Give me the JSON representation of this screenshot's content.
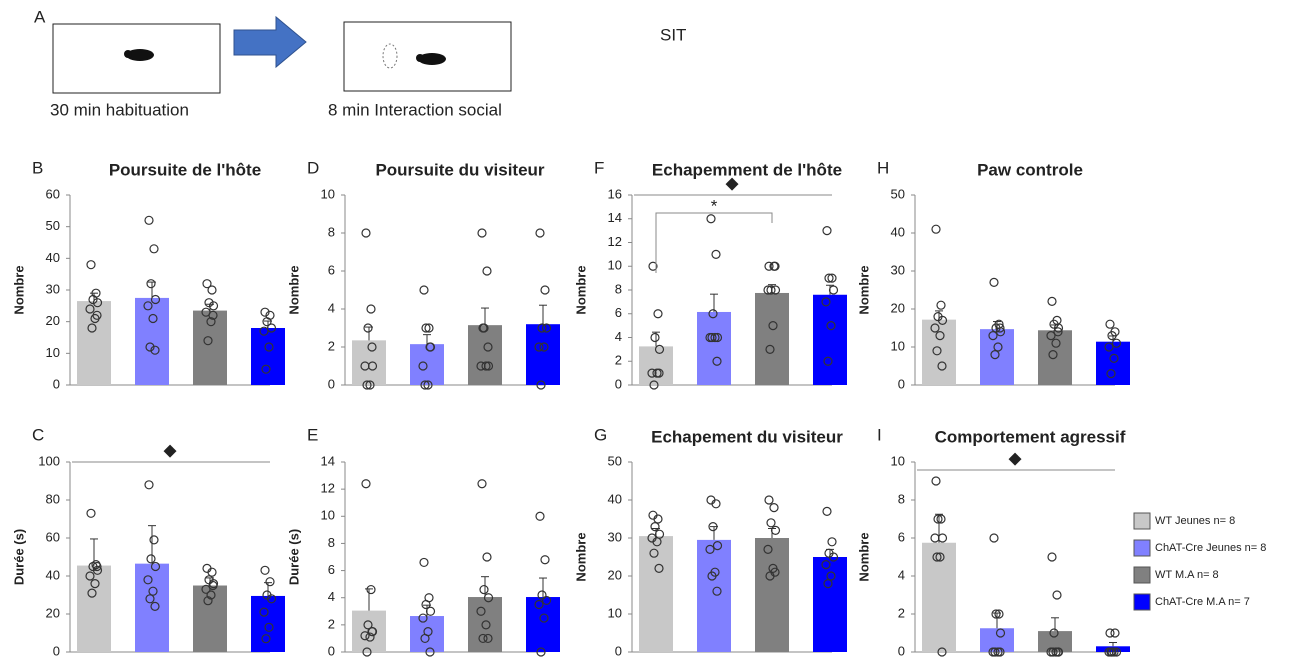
{
  "header": {
    "panel": "A",
    "step1": "30 min habituation",
    "step2": "8 min Interaction social",
    "test": "SIT"
  },
  "legend": {
    "entries": [
      {
        "name": "WT Jeunes n= 8",
        "color": "#c8c8c8"
      },
      {
        "name": "ChAT-Cre Jeunes n= 8",
        "color": "#8080ff"
      },
      {
        "name": "WT M.A n= 8",
        "color": "#808080"
      },
      {
        "name": "ChAT-Cre M.A n= 7",
        "color": "#0000ff"
      }
    ]
  },
  "chart_data": [
    {
      "type": "bar",
      "panel": "B",
      "title": "Poursuite de l'hôte",
      "ylabel": "Nombre",
      "ylim": [
        0,
        60
      ],
      "yticks": [
        0,
        10,
        20,
        30,
        40,
        50,
        60
      ],
      "values": [
        26.5,
        27.5,
        23.5,
        18
      ],
      "errors": [
        2.5,
        5,
        2,
        2.2
      ],
      "points": [
        [
          38,
          29,
          27,
          26,
          24,
          21,
          18,
          22
        ],
        [
          52,
          43,
          32,
          27,
          25,
          21,
          12,
          11
        ],
        [
          32,
          30,
          26,
          25,
          23,
          20,
          14,
          22
        ],
        [
          23,
          22,
          20,
          18,
          17,
          12,
          5
        ]
      ]
    },
    {
      "type": "bar",
      "panel": "D",
      "title": "Poursuite du visiteur",
      "ylabel": "Nombre",
      "ylim": [
        0,
        10
      ],
      "yticks": [
        0,
        2,
        4,
        6,
        8,
        10
      ],
      "values": [
        2.35,
        2.15,
        3.15,
        3.2
      ],
      "errors": [
        0.7,
        0.5,
        0.9,
        1.0
      ],
      "points": [
        [
          8,
          4,
          3,
          1,
          1,
          0,
          0,
          2
        ],
        [
          5,
          3,
          3,
          2,
          1,
          0,
          0,
          2
        ],
        [
          8,
          6,
          3,
          1,
          1,
          1,
          3,
          2
        ],
        [
          8,
          5,
          3,
          3,
          2,
          2,
          0
        ]
      ]
    },
    {
      "type": "bar",
      "panel": "F",
      "title": "Echapemment de l'hôte",
      "ylabel": "Nombre",
      "ylim": [
        0,
        16
      ],
      "yticks": [
        0,
        2,
        4,
        6,
        8,
        10,
        12,
        14,
        16
      ],
      "values": [
        3.25,
        6.15,
        7.75,
        7.6
      ],
      "errors": [
        1.2,
        1.5,
        0.7,
        0.8
      ],
      "points": [
        [
          10,
          6,
          4,
          3,
          1,
          1,
          0,
          1
        ],
        [
          14,
          11,
          6,
          4,
          4,
          4,
          4,
          2
        ],
        [
          10,
          10,
          8,
          8,
          8,
          5,
          3,
          10
        ],
        [
          13,
          9,
          9,
          8,
          7,
          5,
          2
        ]
      ],
      "comparisons": [
        {
          "label": "◆",
          "between": [
            0,
            3
          ]
        },
        {
          "label": "*",
          "between": [
            0,
            2
          ]
        }
      ]
    },
    {
      "type": "bar",
      "panel": "H",
      "title": "Paw controle",
      "ylabel": "Nombre",
      "ylim": [
        0,
        50
      ],
      "yticks": [
        0,
        10,
        20,
        30,
        40,
        50
      ],
      "values": [
        17.2,
        14.7,
        14.4,
        11.4
      ],
      "errors": [
        2.3,
        2,
        1.4,
        1.5
      ],
      "points": [
        [
          41,
          21,
          18,
          17,
          15,
          13,
          9,
          5
        ],
        [
          27,
          16,
          15,
          14,
          13,
          10,
          8,
          15
        ],
        [
          22,
          17,
          16,
          15,
          13,
          11,
          8,
          14
        ],
        [
          16,
          14,
          13,
          11,
          10,
          7,
          3
        ]
      ]
    },
    {
      "type": "bar",
      "panel": "C",
      "ylabel": "Durée (s)",
      "ylim": [
        0,
        100
      ],
      "yticks": [
        0,
        20,
        40,
        60,
        80,
        100
      ],
      "values": [
        45.5,
        46.5,
        35,
        29.5
      ],
      "errors": [
        14,
        20,
        4,
        7
      ],
      "points": [
        [
          73,
          46,
          45,
          43,
          40,
          36,
          31,
          45
        ],
        [
          88,
          59,
          49,
          45,
          38,
          32,
          28,
          24
        ],
        [
          44,
          42,
          38,
          36,
          33,
          30,
          27,
          35
        ],
        [
          43,
          37,
          30,
          28,
          21,
          13,
          7
        ]
      ],
      "comparisons": [
        {
          "label": "◆",
          "between": [
            0,
            3
          ]
        }
      ]
    },
    {
      "type": "bar",
      "panel": "E",
      "ylabel": "Durée (s)",
      "ylim": [
        0,
        14
      ],
      "yticks": [
        0,
        2,
        4,
        6,
        8,
        10,
        12,
        14
      ],
      "values": [
        3.05,
        2.65,
        4.05,
        4.05
      ],
      "errors": [
        1.6,
        0.8,
        1.5,
        1.4
      ],
      "points": [
        [
          12.4,
          4.6,
          2,
          1.5,
          1.2,
          1.1,
          0,
          1.5
        ],
        [
          6.6,
          4,
          3.5,
          3,
          2.5,
          1.5,
          1,
          0
        ],
        [
          12.4,
          7,
          4.6,
          4,
          3,
          2,
          1,
          1
        ],
        [
          10,
          6.8,
          4.2,
          3.8,
          3.5,
          2.5,
          0
        ]
      ]
    },
    {
      "type": "bar",
      "panel": "G",
      "title": "Echapement du visiteur",
      "ylabel": "Nombre",
      "ylim": [
        0,
        50
      ],
      "yticks": [
        0,
        10,
        20,
        30,
        40,
        50
      ],
      "values": [
        30.5,
        29.5,
        30,
        25
      ],
      "errors": [
        2,
        3.5,
        2.5,
        2
      ],
      "points": [
        [
          36,
          35,
          33,
          31,
          30,
          29,
          26,
          22
        ],
        [
          40,
          39,
          33,
          28,
          27,
          21,
          20,
          16
        ],
        [
          40,
          38,
          34,
          32,
          27,
          22,
          20,
          21
        ],
        [
          37,
          29,
          26,
          25,
          23,
          20,
          18
        ]
      ]
    },
    {
      "type": "bar",
      "panel": "I",
      "title": "Comportement agressif",
      "ylabel": "Nombre",
      "ylim": [
        0,
        10
      ],
      "yticks": [
        0,
        2,
        4,
        6,
        8,
        10
      ],
      "values": [
        5.75,
        1.25,
        1.1,
        0.3
      ],
      "errors": [
        1.5,
        0.8,
        0.7,
        0.2
      ],
      "points": [
        [
          9,
          7,
          7,
          6,
          6,
          5,
          5,
          0
        ],
        [
          6,
          2,
          2,
          1,
          0,
          0,
          0,
          0
        ],
        [
          5,
          3,
          1,
          0,
          0,
          0,
          0,
          0
        ],
        [
          1,
          1,
          0,
          0,
          0,
          0,
          0
        ]
      ],
      "comparisons": [
        {
          "label": "◆",
          "between": [
            0,
            3
          ]
        }
      ]
    }
  ]
}
